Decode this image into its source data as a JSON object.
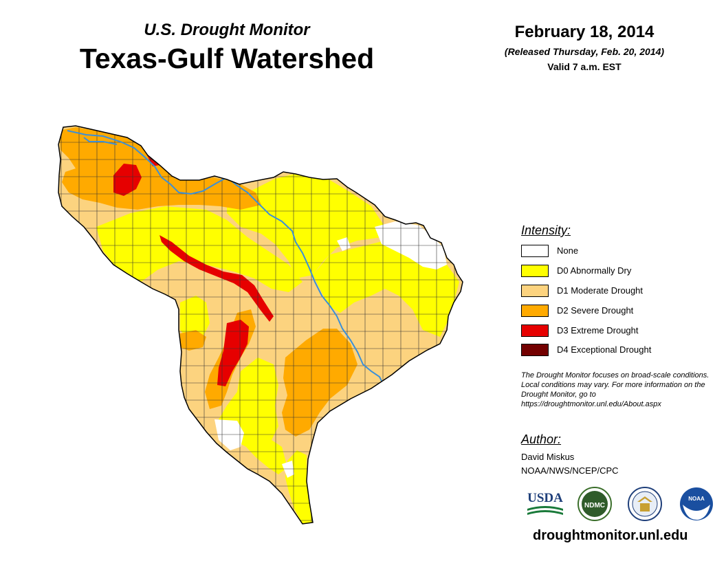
{
  "header": {
    "subtitle": "U.S. Drought Monitor",
    "title": "Texas-Gulf Watershed",
    "date": "February 18, 2014",
    "released": "(Released Thursday, Feb. 20, 2014)",
    "valid": "Valid 7 a.m. EST"
  },
  "legend": {
    "title": "Intensity:",
    "items": [
      {
        "label": "None",
        "color": "#ffffff"
      },
      {
        "label": "D0 Abnormally Dry",
        "color": "#ffff00"
      },
      {
        "label": "D1 Moderate Drought",
        "color": "#fcd37f"
      },
      {
        "label": "D2 Severe Drought",
        "color": "#ffaa00"
      },
      {
        "label": "D3 Extreme Drought",
        "color": "#e60000"
      },
      {
        "label": "D4 Exceptional Drought",
        "color": "#730000"
      }
    ]
  },
  "note": "The Drought Monitor focuses on broad-scale conditions. Local conditions may vary. For more information on the Drought Monitor, go to https://droughtmonitor.unl.edu/About.aspx",
  "author": {
    "title": "Author:",
    "name": "David Miskus",
    "org": "NOAA/NWS/NCEP/CPC"
  },
  "logos": {
    "usda": "USDA",
    "ndmc": "NDMC",
    "noaa": "NOAA"
  },
  "website": "droughtmonitor.unl.edu",
  "colors": {
    "river": "#3a8fd9",
    "outline": "#000000",
    "none": "#ffffff",
    "d0": "#ffff00",
    "d1": "#fcd37f",
    "d2": "#ffaa00",
    "d3": "#e60000",
    "d4": "#730000"
  }
}
